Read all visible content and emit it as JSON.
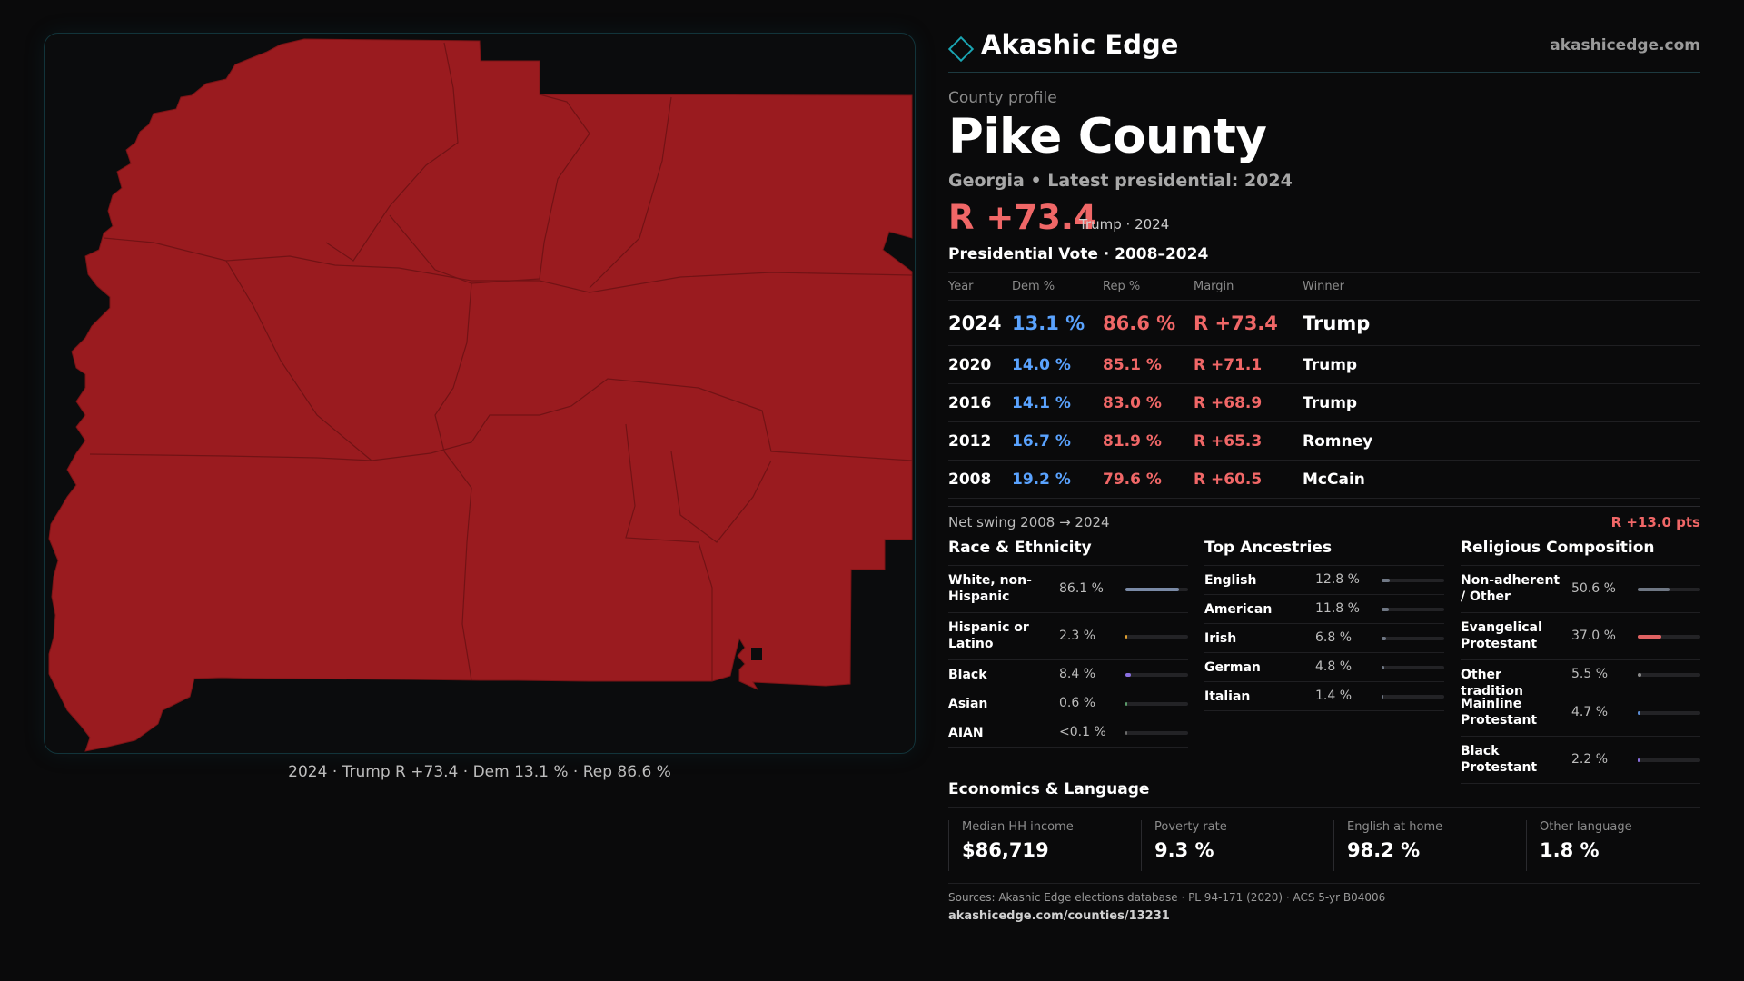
{
  "brand": {
    "name": "Akashic Edge",
    "url": "akashicedge.com",
    "accent": "#1aa5b3"
  },
  "profile": {
    "eyebrow": "County profile",
    "name": "Pike County",
    "subtitle": "Georgia • Latest presidential: 2024",
    "margin": "R +73.4",
    "margin_note": "Trump · 2024"
  },
  "map": {
    "fill_color": "#9a1b1f",
    "border_color": "#7a1416",
    "caption": "2024 · Trump R +73.4 · Dem 13.1 % · Rep 86.6 %"
  },
  "votes": {
    "title": "Presidential Vote · 2008–2024",
    "headers": [
      "Year",
      "Dem %",
      "Rep %",
      "Margin",
      "Winner"
    ],
    "rows": [
      {
        "year": "2024",
        "dem": "13.1 %",
        "rep": "86.6 %",
        "margin": "R +73.4",
        "winner": "Trump"
      },
      {
        "year": "2020",
        "dem": "14.0 %",
        "rep": "85.1 %",
        "margin": "R +71.1",
        "winner": "Trump"
      },
      {
        "year": "2016",
        "dem": "14.1 %",
        "rep": "83.0 %",
        "margin": "R +68.9",
        "winner": "Trump"
      },
      {
        "year": "2012",
        "dem": "16.7 %",
        "rep": "81.9 %",
        "margin": "R +65.3",
        "winner": "Romney"
      },
      {
        "year": "2008",
        "dem": "19.2 %",
        "rep": "79.6 %",
        "margin": "R +60.5",
        "winner": "McCain"
      }
    ],
    "swing_label": "Net swing 2008 → 2024",
    "swing_value": "R +13.0 pts"
  },
  "race": {
    "title": "Race & Ethnicity",
    "items": [
      {
        "label": "White, non-Hispanic",
        "value": "86.1 %",
        "pct": 86.1,
        "color": "#7a8aa6"
      },
      {
        "label": "Hispanic or Latino",
        "value": "2.3 %",
        "pct": 2.3,
        "color": "#e0a030"
      },
      {
        "label": "Black",
        "value": "8.4 %",
        "pct": 8.4,
        "color": "#8a6fe0"
      },
      {
        "label": "Asian",
        "value": "0.6 %",
        "pct": 0.6,
        "color": "#5a9a6a"
      },
      {
        "label": "AIAN",
        "value": "<0.1 %",
        "pct": 0.1,
        "color": "#6a6a6a"
      }
    ]
  },
  "ancestry": {
    "title": "Top Ancestries",
    "items": [
      {
        "label": "English",
        "value": "12.8 %",
        "pct": 12.8,
        "color": "#6f7784"
      },
      {
        "label": "American",
        "value": "11.8 %",
        "pct": 11.8,
        "color": "#6f7784"
      },
      {
        "label": "Irish",
        "value": "6.8 %",
        "pct": 6.8,
        "color": "#6f7784"
      },
      {
        "label": "German",
        "value": "4.8 %",
        "pct": 4.8,
        "color": "#6f7784"
      },
      {
        "label": "Italian",
        "value": "1.4 %",
        "pct": 1.4,
        "color": "#6f7784"
      }
    ]
  },
  "religion": {
    "title": "Religious Composition",
    "items": [
      {
        "label": "Non-adherent / Other",
        "value": "50.6 %",
        "pct": 50.6,
        "color": "#6f7784"
      },
      {
        "label": "Evangelical Protestant",
        "value": "37.0 %",
        "pct": 37.0,
        "color": "#e06262"
      },
      {
        "label": "Other tradition",
        "value": "5.5 %",
        "pct": 5.5,
        "color": "#8a8a8a"
      },
      {
        "label": "Mainline Protestant",
        "value": "4.7 %",
        "pct": 4.7,
        "color": "#5a8ad0"
      },
      {
        "label": "Black Protestant",
        "value": "2.2 %",
        "pct": 2.2,
        "color": "#8a6fe0"
      }
    ]
  },
  "economics": {
    "title": "Economics & Language",
    "stats": [
      {
        "label": "Median HH income",
        "value": "$86,719"
      },
      {
        "label": "Poverty rate",
        "value": "9.3 %"
      },
      {
        "label": "English at home",
        "value": "98.2 %"
      },
      {
        "label": "Other language",
        "value": "1.8 %"
      }
    ]
  },
  "sources": {
    "text": "Sources: Akashic Edge elections database · PL 94-171 (2020) · ACS 5-yr B04006",
    "url": "akashicedge.com/counties/13231"
  }
}
